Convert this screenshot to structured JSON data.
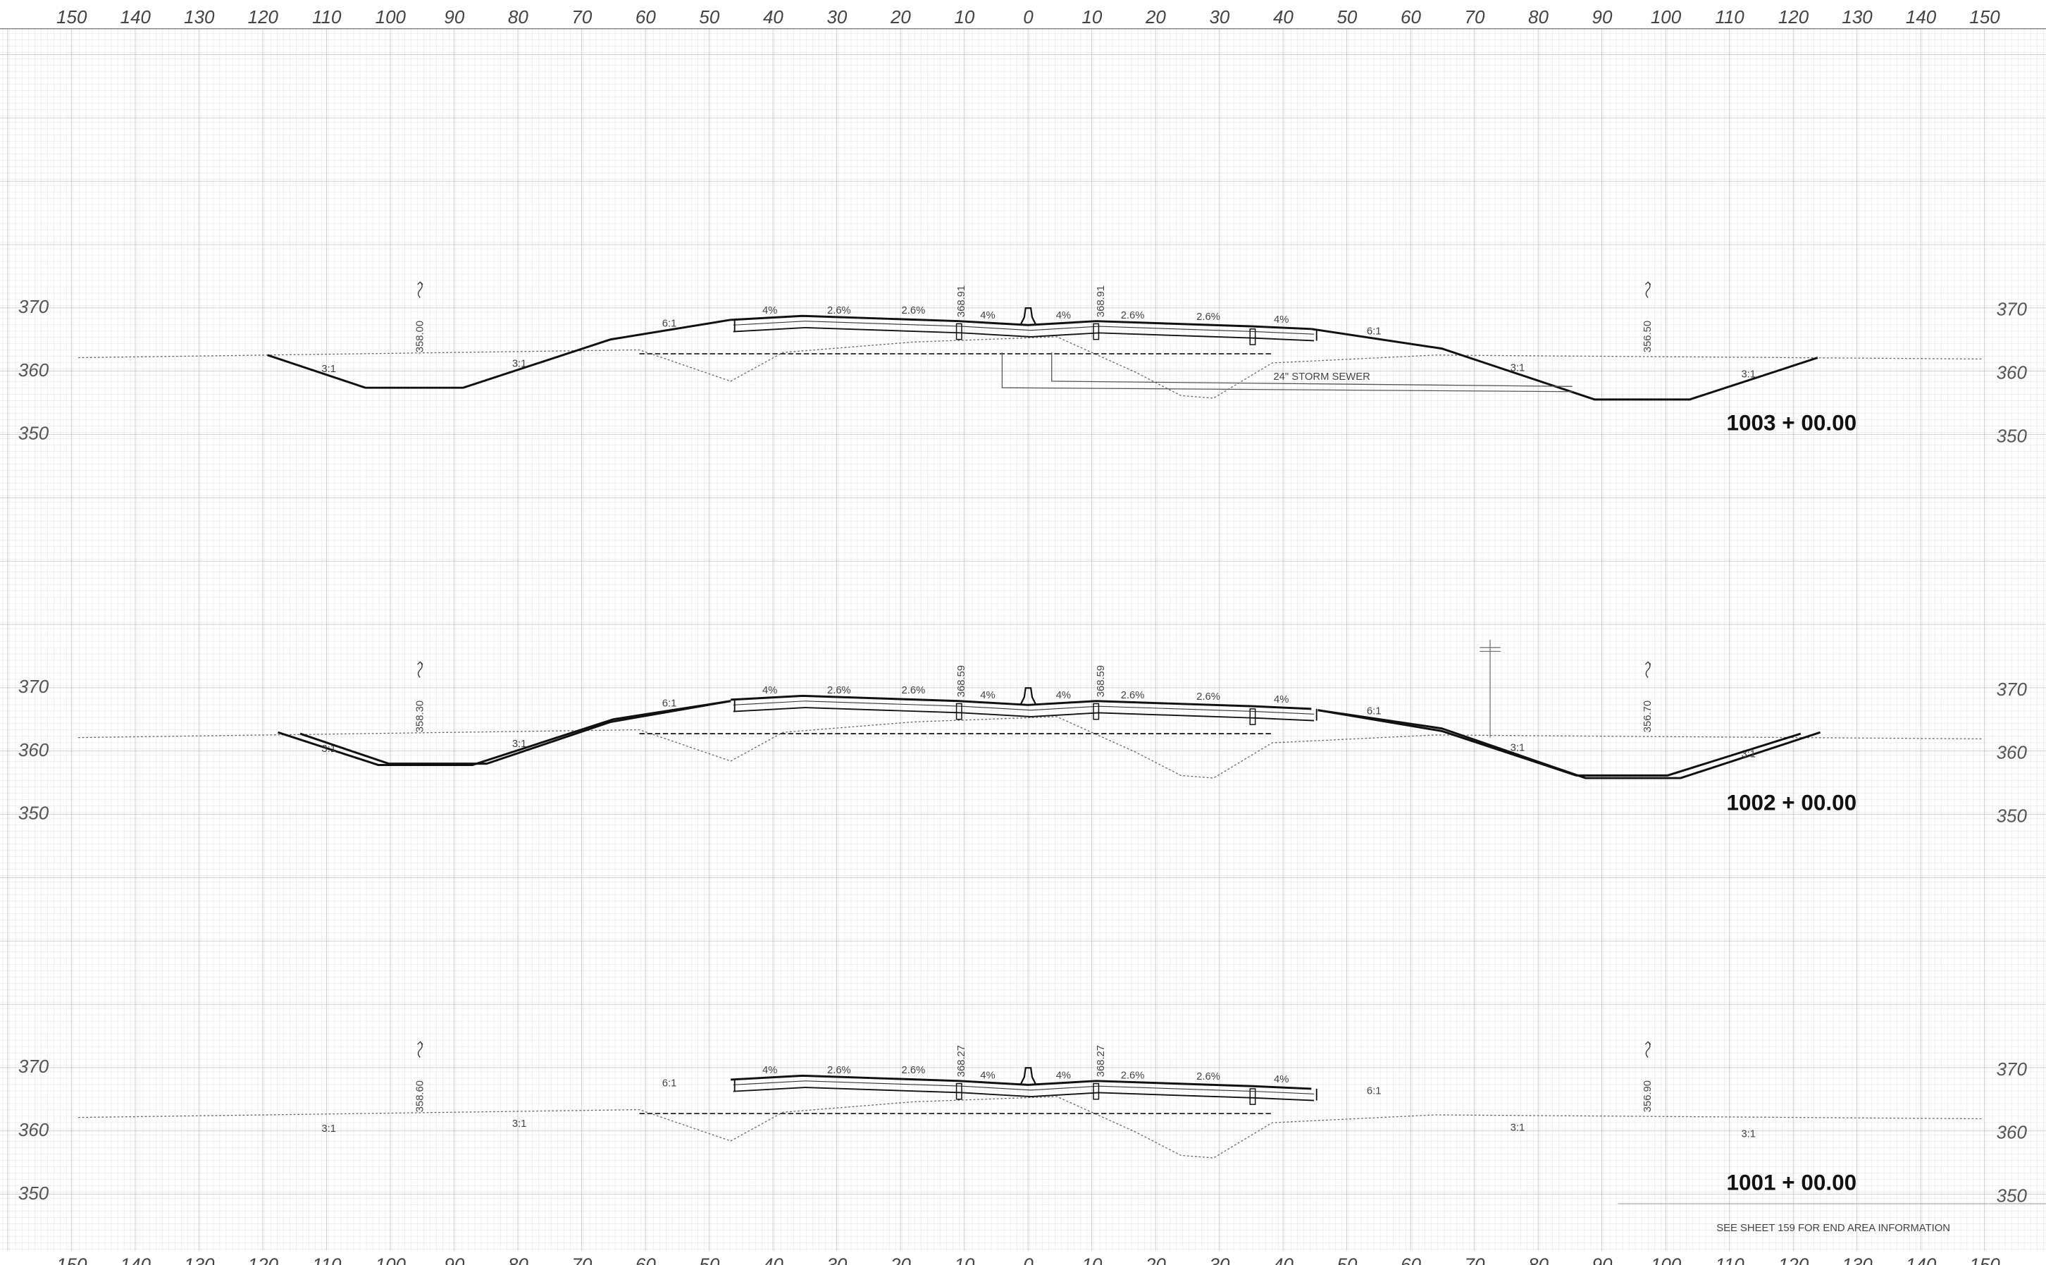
{
  "scale_top": [
    "150",
    "140",
    "130",
    "120",
    "110",
    "100",
    "90",
    "80",
    "70",
    "60",
    "50",
    "40",
    "30",
    "20",
    "10",
    "0",
    "10",
    "20",
    "30",
    "40",
    "50",
    "60",
    "70",
    "80",
    "90",
    "100",
    "110",
    "120",
    "130",
    "140",
    "150"
  ],
  "scale_bottom": [
    "150",
    "140",
    "130",
    "120",
    "110",
    "100",
    "90",
    "80",
    "70",
    "60",
    "50",
    "40",
    "30",
    "20",
    "10",
    "0",
    "10",
    "20",
    "30",
    "40",
    "50",
    "60",
    "70",
    "80",
    "90",
    "100",
    "110",
    "120",
    "130",
    "140",
    "150"
  ],
  "sections": [
    {
      "station": "1003 + 00.00",
      "elevations_left": [
        "370",
        "360",
        "350"
      ],
      "elevations_right": [
        "370",
        "360",
        "350"
      ],
      "left_elevation": "358.00",
      "right_elevation": "356.50",
      "centerline_elevations": [
        "368.91",
        "368.91"
      ],
      "slopes": [
        "3:1",
        "3:1",
        "6:1",
        "4%",
        "2.6%",
        "2.6%",
        "4%",
        "4%",
        "2.6%",
        "2.6%",
        "4%",
        "6:1",
        "3:1",
        "3:1"
      ],
      "note": "24\" STORM SEWER"
    },
    {
      "station": "1002 + 00.00",
      "elevations_left": [
        "370",
        "360",
        "350"
      ],
      "elevations_right": [
        "370",
        "360",
        "350"
      ],
      "left_elevation": "358.30",
      "right_elevation": "356.70",
      "centerline_elevations": [
        "368.59",
        "368.59"
      ],
      "slopes": [
        "3:1",
        "3:1",
        "6:1",
        "4%",
        "2.6%",
        "2.6%",
        "4%",
        "4%",
        "2.6%",
        "2.6%",
        "4%",
        "6:1",
        "3:1",
        "3:1"
      ]
    },
    {
      "station": "1001 + 00.00",
      "elevations_left": [
        "370",
        "360",
        "350"
      ],
      "elevations_right": [
        "370",
        "360",
        "350"
      ],
      "left_elevation": "358.60",
      "right_elevation": "356.90",
      "centerline_elevations": [
        "368.27",
        "368.27"
      ],
      "slopes": [
        "3:1",
        "3:1",
        "6:1",
        "4%",
        "2.6%",
        "2.6%",
        "4%",
        "4%",
        "2.6%",
        "2.6%",
        "4%",
        "6:1",
        "3:1",
        "3:1"
      ]
    }
  ],
  "footnote": "SEE SHEET 159 FOR END AREA INFORMATION"
}
